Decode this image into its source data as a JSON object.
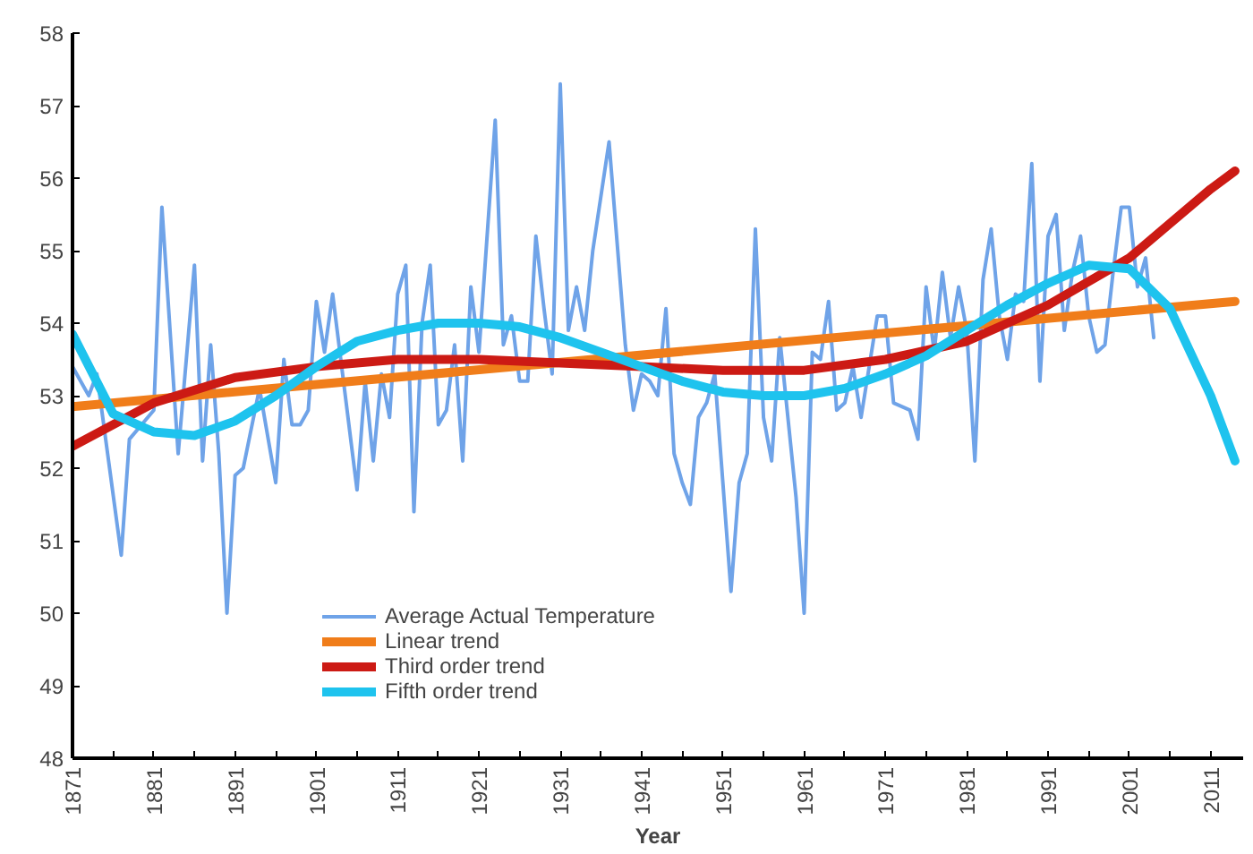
{
  "chart_data": {
    "type": "line",
    "xlabel": "Year",
    "xlim": [
      1871,
      2015
    ],
    "ylim": [
      48,
      58
    ],
    "xticks": [
      1871,
      {
        "value": 1876,
        "label": null
      },
      1881,
      {
        "value": 1886,
        "label": null
      },
      1891,
      {
        "value": 1896,
        "label": null
      },
      1901,
      {
        "value": 1906,
        "label": null
      },
      1911,
      {
        "value": 1916,
        "label": null
      },
      1921,
      {
        "value": 1926,
        "label": null
      },
      1931,
      {
        "value": 1936,
        "label": null
      },
      1941,
      {
        "value": 1946,
        "label": null
      },
      1951,
      {
        "value": 1956,
        "label": null
      },
      1961,
      {
        "value": 1966,
        "label": null
      },
      1971,
      {
        "value": 1976,
        "label": null
      },
      1981,
      {
        "value": 1986,
        "label": null
      },
      1991,
      {
        "value": 1996,
        "label": null
      },
      2001,
      {
        "value": 2006,
        "label": null
      },
      2011
    ],
    "yticks": [
      48,
      49,
      50,
      51,
      52,
      53,
      54,
      55,
      56,
      57,
      58
    ],
    "grid": false,
    "legend": "bottom left",
    "marker": "none",
    "line_style": "solid",
    "series": [
      {
        "name": "Average Actual Temperature",
        "color": "#6fa3e8",
        "x": [
          1871,
          1873,
          1874,
          1877,
          1878,
          1881,
          1882,
          1884,
          1886,
          1887,
          1888,
          1889,
          1890,
          1891,
          1892,
          1894,
          1896,
          1897,
          1898,
          1899,
          1900,
          1901,
          1902,
          1903,
          1906,
          1907,
          1908,
          1909,
          1910,
          1911,
          1912,
          1913,
          1914,
          1915,
          1916,
          1917,
          1918,
          1919,
          1920,
          1921,
          1923,
          1924,
          1925,
          1926,
          1927,
          1928,
          1929,
          1930,
          1931,
          1932,
          1933,
          1934,
          1935,
          1937,
          1939,
          1940,
          1941,
          1942,
          1943,
          1944,
          1945,
          1946,
          1947,
          1948,
          1949,
          1950,
          1952,
          1953,
          1954,
          1955,
          1956,
          1957,
          1958,
          1960,
          1961,
          1962,
          1963,
          1964,
          1965,
          1966,
          1967,
          1968,
          1970,
          1971,
          1972,
          1974,
          1975,
          1976,
          1977,
          1978,
          1979,
          1980,
          1981,
          1982,
          1983,
          1984,
          1985,
          1986,
          1987,
          1988,
          1989,
          1990,
          1991,
          1992,
          1993,
          1994,
          1995,
          1996,
          1997,
          1998,
          1999,
          2000,
          2001,
          2002,
          2003,
          2004
        ],
        "values": [
          53.4,
          53.0,
          53.3,
          50.8,
          52.4,
          52.8,
          55.6,
          52.2,
          54.8,
          52.1,
          53.7,
          52.2,
          50.0,
          51.9,
          52.0,
          53.1,
          51.8,
          53.5,
          52.6,
          52.6,
          52.8,
          54.3,
          53.6,
          54.4,
          51.7,
          53.2,
          52.1,
          53.3,
          52.7,
          54.4,
          54.8,
          51.4,
          54.0,
          54.8,
          52.6,
          52.8,
          53.7,
          52.1,
          54.5,
          53.6,
          56.8,
          53.7,
          54.1,
          53.2,
          53.2,
          55.2,
          54.2,
          53.3,
          57.3,
          53.9,
          54.5,
          53.9,
          55.0,
          56.5,
          53.7,
          52.8,
          53.3,
          53.2,
          53.0,
          54.2,
          52.2,
          51.8,
          51.5,
          52.7,
          52.9,
          53.3,
          50.3,
          51.8,
          52.2,
          55.3,
          52.7,
          52.1,
          53.8,
          51.6,
          50.0,
          53.6,
          53.5,
          54.3,
          52.8,
          52.9,
          53.4,
          52.7,
          54.1,
          54.1,
          52.9,
          52.8,
          52.4,
          54.5,
          53.6,
          54.7,
          53.8,
          54.5,
          53.9,
          52.1,
          54.6,
          55.3,
          54.1,
          53.5,
          54.4,
          54.3,
          56.2,
          53.2,
          55.2,
          55.5,
          53.9,
          54.7,
          55.2,
          54.1,
          53.6,
          53.7,
          54.7,
          55.6,
          55.6,
          54.5,
          54.9,
          53.8
        ]
      },
      {
        "name": "Linear trend",
        "color": "#f07d1a",
        "x": [
          1871,
          2014
        ],
        "values": [
          52.85,
          54.3
        ]
      },
      {
        "name": "Third order trend",
        "color": "#cc1a14",
        "x": [
          1871,
          1881,
          1891,
          1901,
          1911,
          1921,
          1931,
          1941,
          1951,
          1961,
          1971,
          1981,
          1991,
          2001,
          2011,
          2014
        ],
        "values": [
          52.3,
          52.9,
          53.25,
          53.4,
          53.5,
          53.5,
          53.45,
          53.4,
          53.35,
          53.35,
          53.5,
          53.75,
          54.25,
          54.9,
          55.85,
          56.1
        ]
      },
      {
        "name": "Fifth order trend",
        "color": "#1ec3ee",
        "x": [
          1871,
          1876,
          1881,
          1886,
          1891,
          1896,
          1901,
          1906,
          1911,
          1916,
          1921,
          1926,
          1931,
          1936,
          1941,
          1946,
          1951,
          1956,
          1961,
          1966,
          1971,
          1976,
          1981,
          1986,
          1991,
          1996,
          2001,
          2006,
          2011,
          2014
        ],
        "values": [
          53.85,
          52.75,
          52.5,
          52.45,
          52.65,
          53.0,
          53.4,
          53.75,
          53.9,
          54.0,
          54.0,
          53.95,
          53.8,
          53.6,
          53.4,
          53.2,
          53.05,
          53.0,
          53.0,
          53.1,
          53.3,
          53.55,
          53.9,
          54.25,
          54.55,
          54.8,
          54.75,
          54.2,
          53.0,
          52.1
        ]
      }
    ]
  }
}
